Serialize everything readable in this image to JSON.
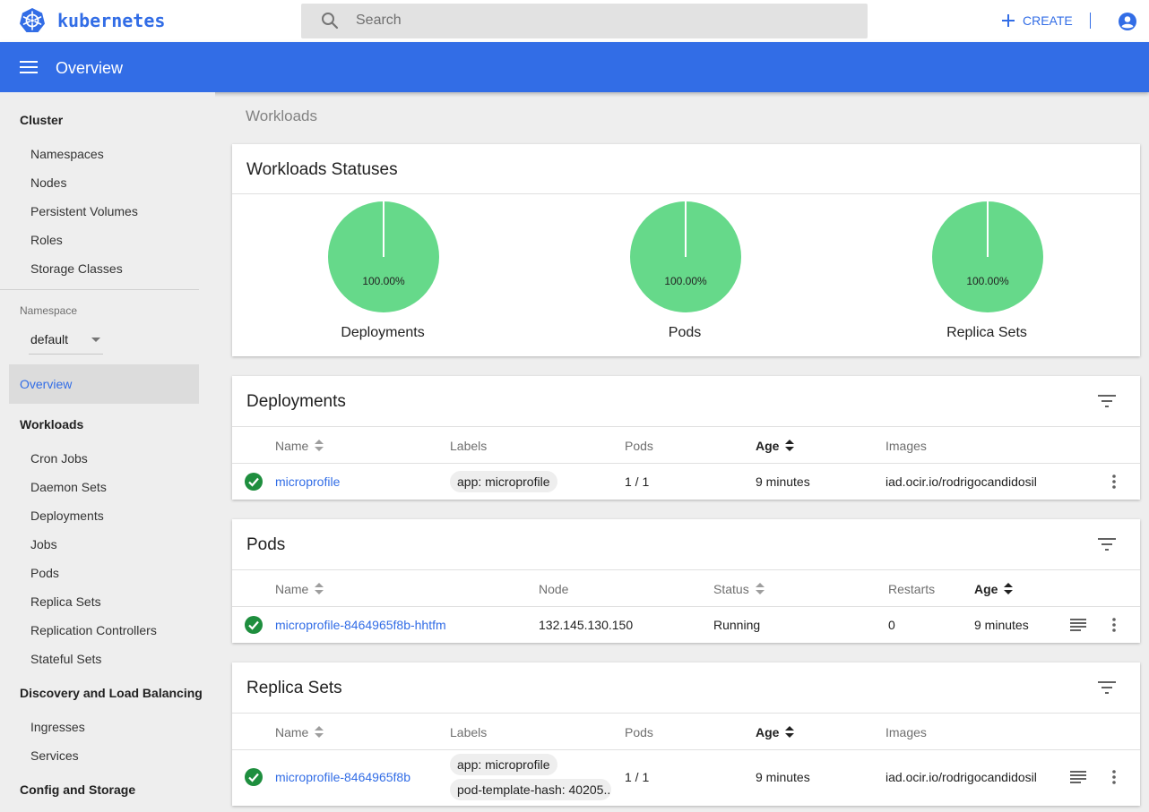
{
  "header": {
    "brand": "kubernetes",
    "search_placeholder": "Search",
    "create_label": "CREATE"
  },
  "toolbar": {
    "title": "Overview"
  },
  "sidebar": {
    "cluster_header": "Cluster",
    "cluster_items": [
      "Namespaces",
      "Nodes",
      "Persistent Volumes",
      "Roles",
      "Storage Classes"
    ],
    "namespace_label": "Namespace",
    "namespace_value": "default",
    "overview_label": "Overview",
    "workloads_header": "Workloads",
    "workloads_items": [
      "Cron Jobs",
      "Daemon Sets",
      "Deployments",
      "Jobs",
      "Pods",
      "Replica Sets",
      "Replication Controllers",
      "Stateful Sets"
    ],
    "discovery_header": "Discovery and Load Balancing",
    "discovery_items": [
      "Ingresses",
      "Services"
    ],
    "config_header": "Config and Storage"
  },
  "main": {
    "breadcrumb": "Workloads",
    "statuses": {
      "title": "Workloads Statuses",
      "charts": [
        {
          "label": "Deployments",
          "percent_text": "100.00%",
          "percent": 100
        },
        {
          "label": "Pods",
          "percent_text": "100.00%",
          "percent": 100
        },
        {
          "label": "Replica Sets",
          "percent_text": "100.00%",
          "percent": 100
        }
      ],
      "success_color": "#66d98a"
    },
    "deployments": {
      "title": "Deployments",
      "columns": [
        "Name",
        "Labels",
        "Pods",
        "Age",
        "Images"
      ],
      "rows": [
        {
          "name": "microprofile",
          "label": "app: microprofile",
          "pods": "1 / 1",
          "age": "9 minutes",
          "image": "iad.ocir.io/rodrigocandidosil"
        }
      ]
    },
    "pods": {
      "title": "Pods",
      "columns": [
        "Name",
        "Node",
        "Status",
        "Restarts",
        "Age"
      ],
      "rows": [
        {
          "name": "microprofile-8464965f8b-hhtfm",
          "node": "132.145.130.150",
          "status": "Running",
          "restarts": "0",
          "age": "9 minutes"
        }
      ]
    },
    "replica_sets": {
      "title": "Replica Sets",
      "columns": [
        "Name",
        "Labels",
        "Pods",
        "Age",
        "Images"
      ],
      "rows": [
        {
          "name": "microprofile-8464965f8b",
          "labels": [
            "app: microprofile",
            "pod-template-hash: 40205..."
          ],
          "pods": "1 / 1",
          "age": "9 minutes",
          "image": "iad.ocir.io/rodrigocandidosil"
        }
      ]
    }
  },
  "colors": {
    "primary": "#326de6",
    "success": "#1e8e3e"
  }
}
